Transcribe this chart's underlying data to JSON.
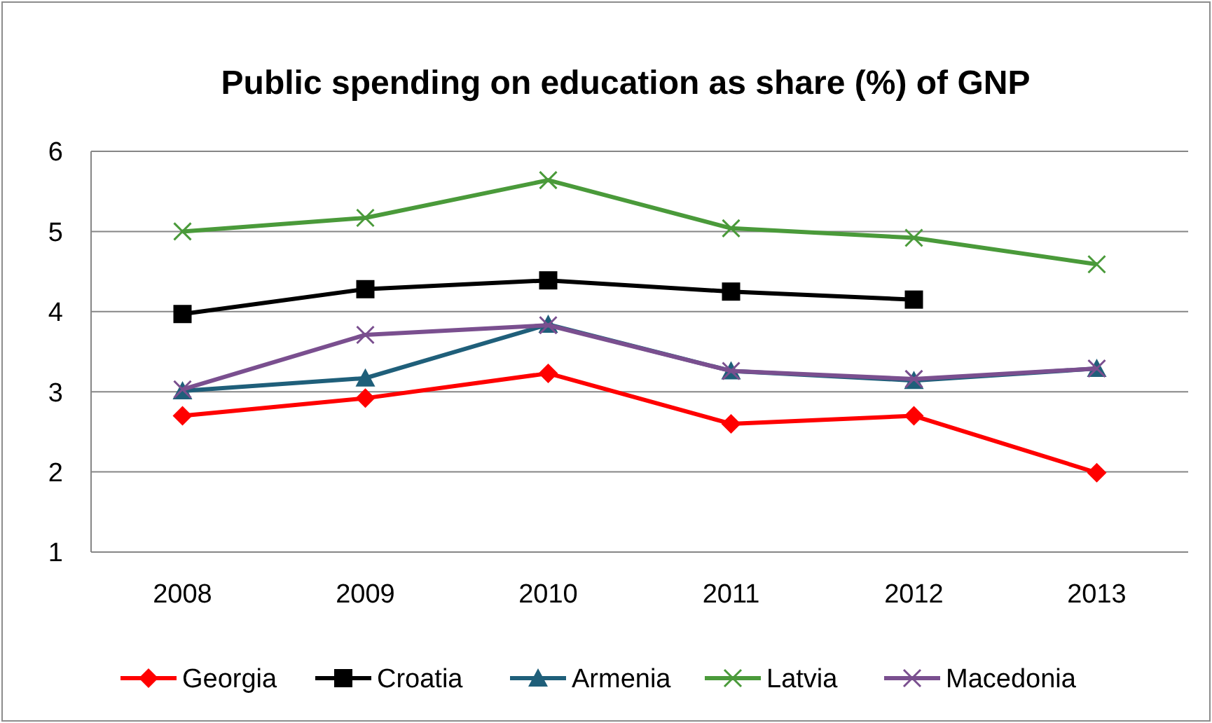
{
  "chart_data": {
    "type": "line",
    "title": "Public spending on education as share (%) of GNP",
    "categories": [
      "2008",
      "2009",
      "2010",
      "2011",
      "2012",
      "2013"
    ],
    "ylim": [
      1,
      6
    ],
    "yticks": [
      1,
      2,
      3,
      4,
      5,
      6
    ],
    "grid": "y",
    "legend": "bottom",
    "series": [
      {
        "name": "Georgia",
        "color": "#ff0000",
        "marker": "diamond",
        "values": [
          2.7,
          2.92,
          3.23,
          2.6,
          2.7,
          1.99
        ]
      },
      {
        "name": "Croatia",
        "color": "#000000",
        "marker": "square",
        "values": [
          3.97,
          4.28,
          4.39,
          4.25,
          4.15,
          null
        ]
      },
      {
        "name": "Armenia",
        "color": "#1f5f7a",
        "marker": "triangle",
        "values": [
          3.01,
          3.17,
          3.84,
          3.26,
          3.14,
          3.29
        ]
      },
      {
        "name": "Latvia",
        "color": "#4a9a3a",
        "marker": "cross",
        "values": [
          5.0,
          5.17,
          5.64,
          5.04,
          4.92,
          4.59
        ]
      },
      {
        "name": "Macedonia",
        "color": "#7a4f8f",
        "marker": "cross",
        "values": [
          3.03,
          3.71,
          3.83,
          3.26,
          3.16,
          3.29
        ]
      }
    ]
  }
}
